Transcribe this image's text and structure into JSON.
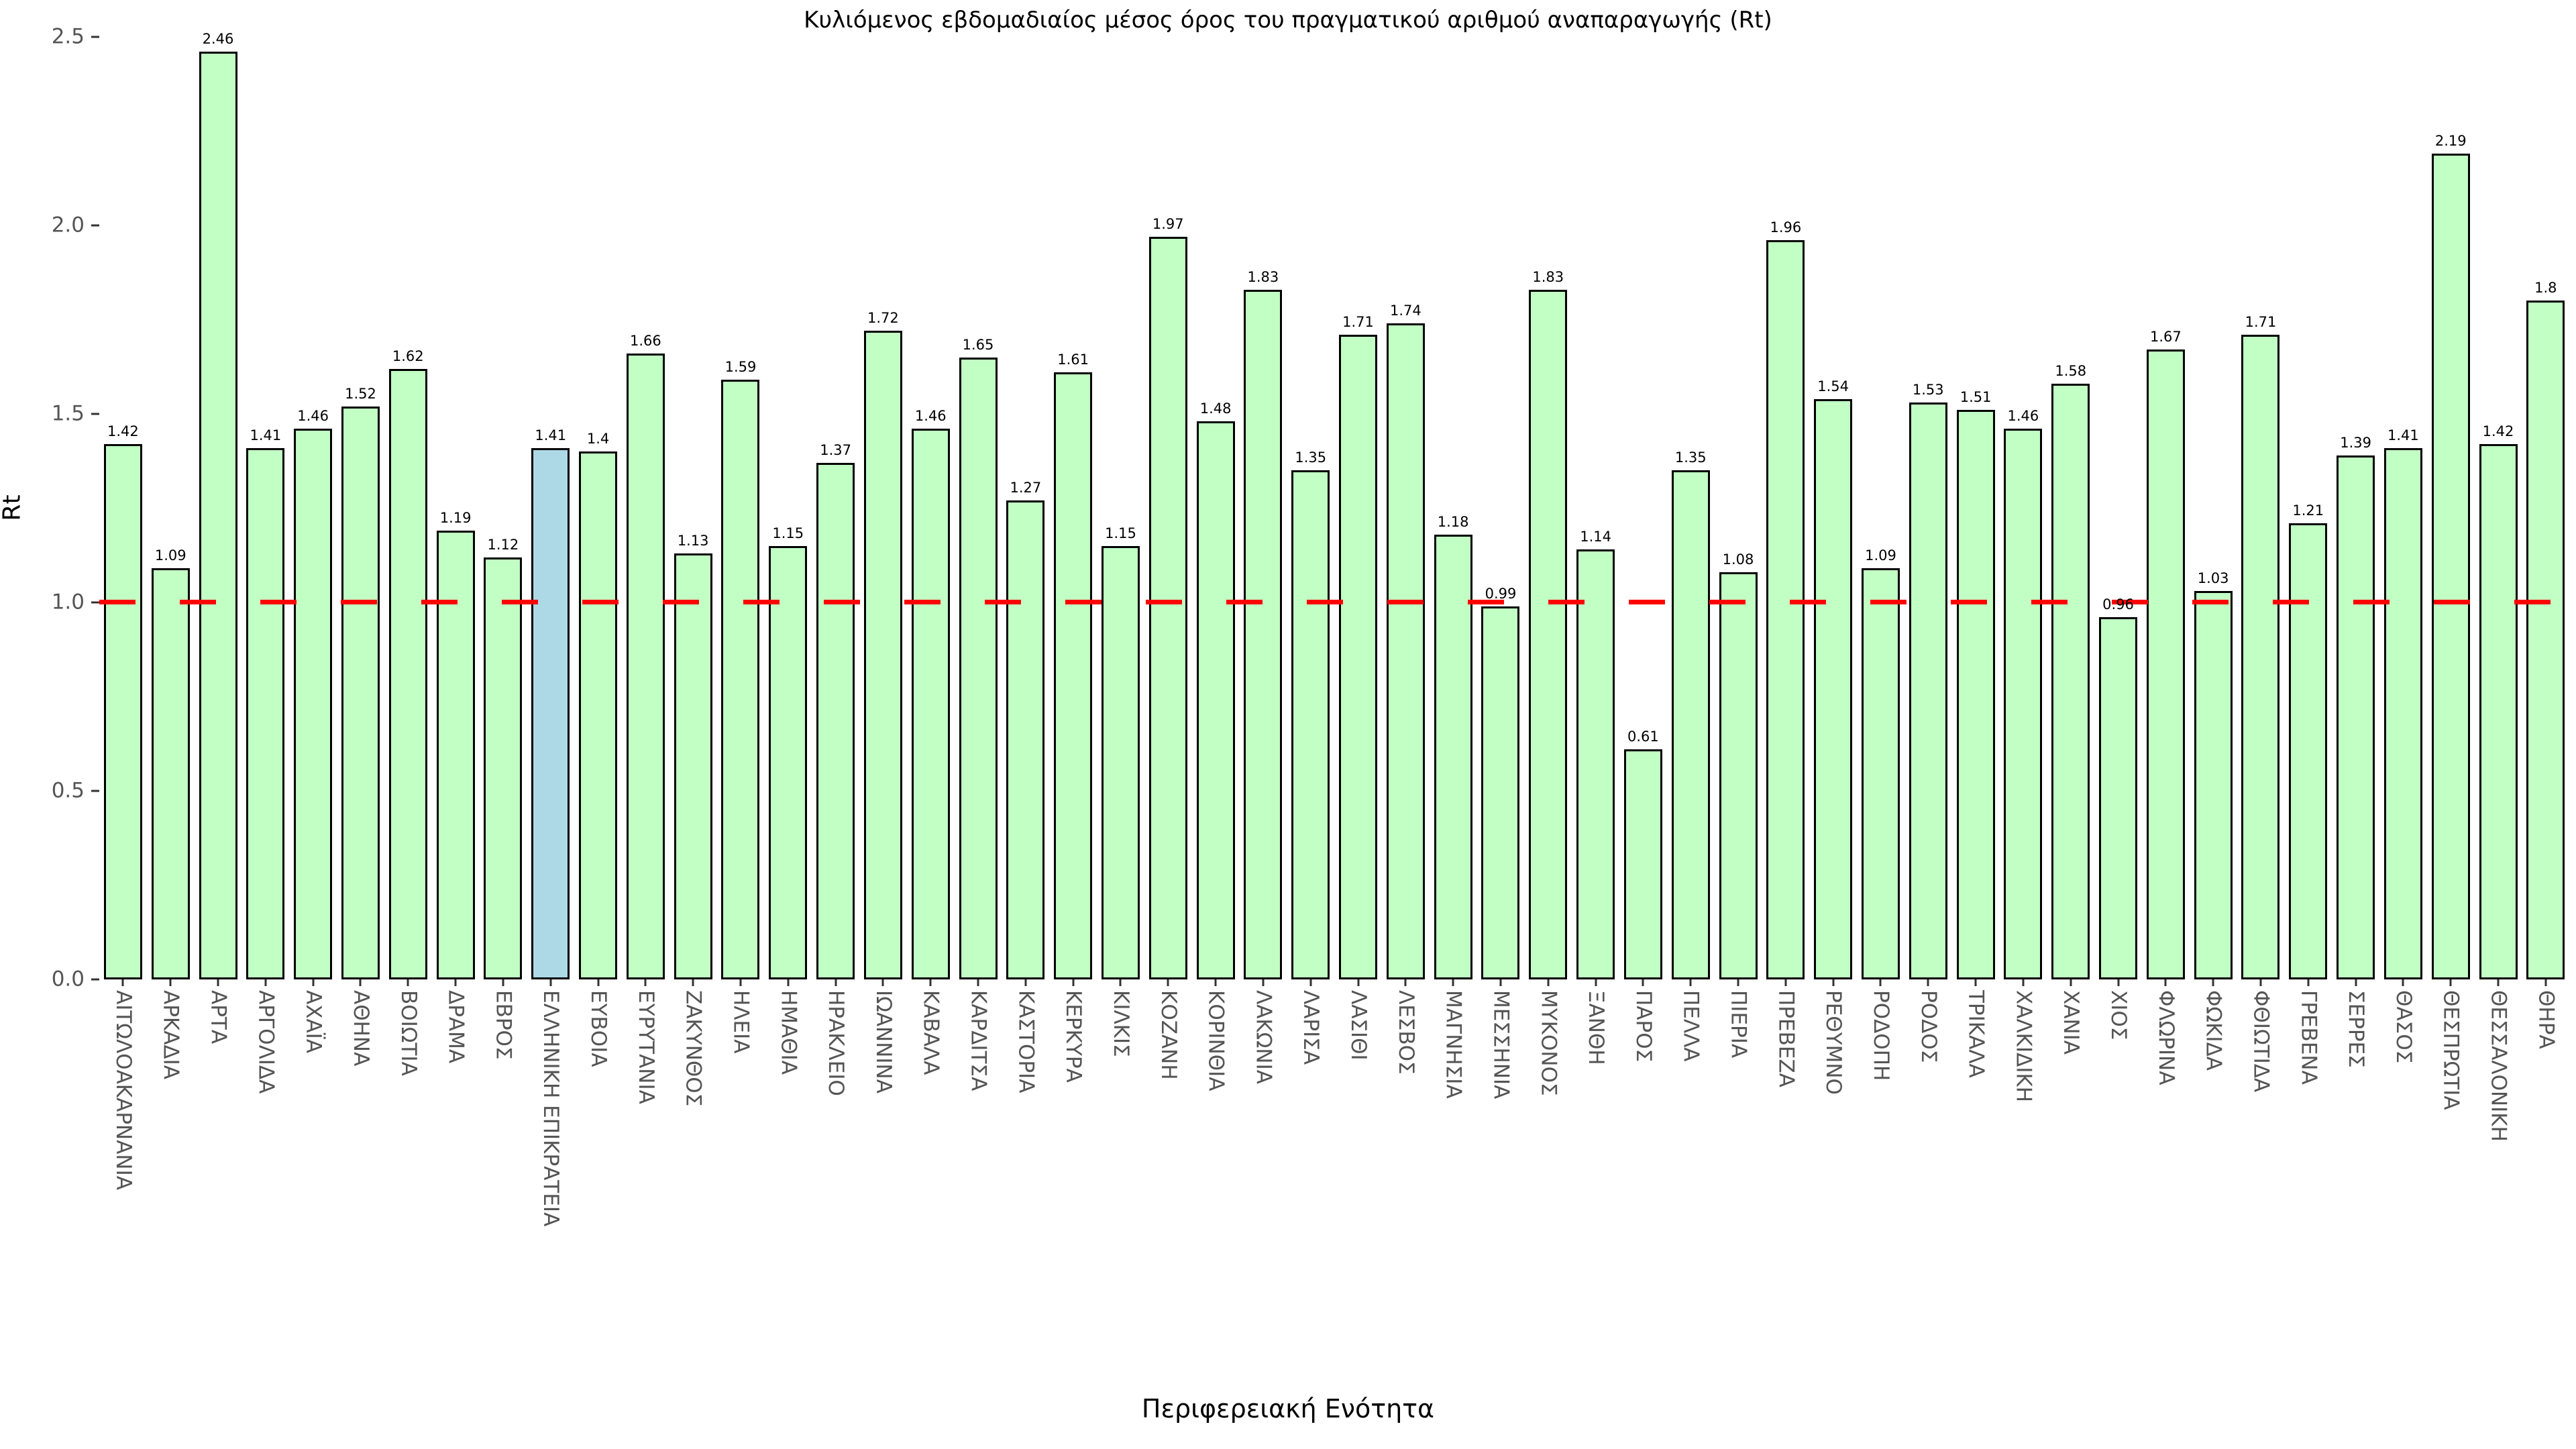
{
  "title": "Κυλιόμενος εβδομαδιαίος μέσος όρος του πραγματικού αριθμού αναπαραγωγής (Rt)",
  "y_axis": {
    "label": "Rt",
    "ticks": [
      "0.0",
      "0.5",
      "1.0",
      "1.5",
      "2.0",
      "2.5"
    ]
  },
  "x_axis": {
    "label": "Περιφερειακή Ενότητα"
  },
  "reference_line": {
    "value": 1.0,
    "color": "#ff0000",
    "style": "dashed"
  },
  "colors": {
    "bar_fill": "#c2ffc4",
    "highlight_fill": "#add8e6",
    "bar_edge": "#000000",
    "tick_text": "#555555"
  },
  "highlight_category": "ΕΛΛΗΝΙΚΗ ΕΠΙΚΡΑΤΕΙΑ",
  "chart_data": {
    "type": "bar",
    "title": "Κυλιόμενος εβδομαδιαίος μέσος όρος του πραγματικού αριθμού αναπαραγωγής (Rt)",
    "xlabel": "Περιφερειακή Ενότητα",
    "ylabel": "Rt",
    "ylim": [
      0,
      2.5
    ],
    "grid": false,
    "legend": false,
    "categories": [
      "ΑΙΤΩΛΟΑΚΑΡΝΑΝΙΑ",
      "ΑΡΚΑΔΙΑ",
      "ΑΡΤΑ",
      "ΑΡΓΟΛΙΔΑ",
      "ΑΧΑΪΑ",
      "ΑΘΗΝΑ",
      "ΒΟΙΩΤΙΑ",
      "ΔΡΑΜΑ",
      "ΕΒΡΟΣ",
      "ΕΛΛΗΝΙΚΗ ΕΠΙΚΡΑΤΕΙΑ",
      "ΕΥΒΟΙΑ",
      "ΕΥΡΥΤΑΝΙΑ",
      "ΖΑΚΥΝΘΟΣ",
      "ΗΛΕΙΑ",
      "ΗΜΑΘΙΑ",
      "ΗΡΑΚΛΕΙΟ",
      "ΙΩΑΝΝΙΝΑ",
      "ΚΑΒΑΛΑ",
      "ΚΑΡΔΙΤΣΑ",
      "ΚΑΣΤΟΡΙΑ",
      "ΚΕΡΚΥΡΑ",
      "ΚΙΛΚΙΣ",
      "ΚΟΖΑΝΗ",
      "ΚΟΡΙΝΘΙΑ",
      "ΛΑΚΩΝΙΑ",
      "ΛΑΡΙΣΑ",
      "ΛΑΣΙΘΙ",
      "ΛΕΣΒΟΣ",
      "ΜΑΓΝΗΣΙΑ",
      "ΜΕΣΣΗΝΙΑ",
      "ΜΥΚΟΝΟΣ",
      "ΞΑΝΘΗ",
      "ΠΑΡΟΣ",
      "ΠΕΛΛΑ",
      "ΠΙΕΡΙΑ",
      "ΠΡΕΒΕΖΑ",
      "ΡΕΘΥΜΝΟ",
      "ΡΟΔΟΠΗ",
      "ΡΟΔΟΣ",
      "ΤΡΙΚΑΛΑ",
      "ΧΑΛΚΙΔΙΚΗ",
      "ΧΑΝΙΑ",
      "ΧΙΟΣ",
      "ΦΛΩΡΙΝΑ",
      "ΦΩΚΙΔΑ",
      "ΦΘΙΩΤΙΔΑ",
      "ΓΡΕΒΕΝΑ",
      "ΣΕΡΡΕΣ",
      "ΘΑΣΟΣ",
      "ΘΕΣΠΡΩΤΙΑ",
      "ΘΕΣΣΑΛΟΝΙΚΗ",
      "ΘΗΡΑ"
    ],
    "values": [
      1.42,
      1.09,
      2.46,
      1.41,
      1.46,
      1.52,
      1.62,
      1.19,
      1.12,
      1.41,
      1.4,
      1.66,
      1.13,
      1.59,
      1.15,
      1.37,
      1.72,
      1.46,
      1.65,
      1.27,
      1.61,
      1.15,
      1.97,
      1.48,
      1.83,
      1.35,
      1.71,
      1.74,
      1.18,
      0.99,
      1.83,
      1.14,
      0.61,
      1.35,
      1.08,
      1.96,
      1.54,
      1.09,
      1.53,
      1.51,
      1.46,
      1.58,
      0.96,
      1.67,
      1.03,
      1.71,
      1.21,
      1.39,
      1.41,
      2.19,
      1.42,
      1.8
    ],
    "bar_labels": [
      "1.42",
      "1.09",
      "2.46",
      "1.41",
      "1.46",
      "1.52",
      "1.62",
      "1.19",
      "1.12",
      "1.41",
      "1.4",
      "1.66",
      "1.13",
      "1.59",
      "1.15",
      "1.37",
      "1.72",
      "1.46",
      "1.65",
      "1.27",
      "1.61",
      "1.15",
      "1.97",
      "1.48",
      "1.83",
      "1.35",
      "1.71",
      "1.74",
      "1.18",
      "0.99",
      "1.83",
      "1.14",
      "0.61",
      "1.35",
      "1.08",
      "1.96",
      "1.54",
      "1.09",
      "1.53",
      "1.51",
      "1.46",
      "1.58",
      "0.96",
      "1.67",
      "1.03",
      "1.71",
      "1.21",
      "1.39",
      "1.41",
      "2.19",
      "1.42",
      "1.8"
    ]
  }
}
